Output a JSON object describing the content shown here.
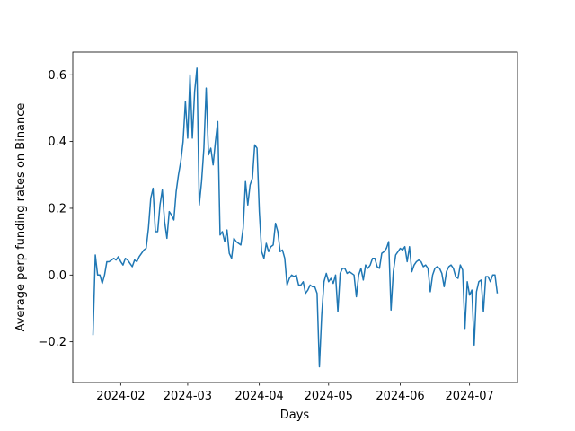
{
  "chart_data": {
    "type": "line",
    "xlabel": "Days",
    "ylabel": "Average perp funding rates on Binance",
    "color": "#1f77b4",
    "values": [
      -0.18,
      0.06,
      0.0,
      0.0,
      -0.025,
      0.0,
      0.04,
      0.04,
      0.045,
      0.05,
      0.045,
      0.055,
      0.04,
      0.03,
      0.05,
      0.045,
      0.035,
      0.025,
      0.045,
      0.04,
      0.055,
      0.065,
      0.075,
      0.08,
      0.14,
      0.23,
      0.26,
      0.13,
      0.13,
      0.21,
      0.255,
      0.16,
      0.11,
      0.19,
      0.18,
      0.165,
      0.25,
      0.3,
      0.34,
      0.4,
      0.52,
      0.41,
      0.6,
      0.41,
      0.55,
      0.62,
      0.21,
      0.28,
      0.38,
      0.56,
      0.36,
      0.38,
      0.33,
      0.4,
      0.46,
      0.12,
      0.13,
      0.1,
      0.135,
      0.065,
      0.05,
      0.11,
      0.1,
      0.095,
      0.09,
      0.14,
      0.28,
      0.21,
      0.27,
      0.29,
      0.39,
      0.38,
      0.19,
      0.07,
      0.05,
      0.095,
      0.07,
      0.085,
      0.09,
      0.155,
      0.13,
      0.07,
      0.075,
      0.05,
      -0.03,
      -0.01,
      0.0,
      -0.005,
      0.0,
      -0.03,
      -0.03,
      -0.02,
      -0.055,
      -0.045,
      -0.03,
      -0.035,
      -0.035,
      -0.055,
      -0.275,
      -0.12,
      -0.02,
      0.005,
      -0.02,
      -0.01,
      -0.025,
      0.0,
      -0.11,
      0.005,
      0.02,
      0.02,
      0.005,
      0.01,
      0.005,
      0.0,
      -0.065,
      0.0,
      0.02,
      -0.015,
      0.03,
      0.02,
      0.03,
      0.05,
      0.05,
      0.025,
      0.02,
      0.065,
      0.07,
      0.08,
      0.1,
      -0.105,
      0.01,
      0.06,
      0.07,
      0.08,
      0.075,
      0.085,
      0.04,
      0.085,
      0.01,
      0.03,
      0.04,
      0.045,
      0.04,
      0.025,
      0.03,
      0.02,
      -0.05,
      0.0,
      0.02,
      0.025,
      0.02,
      0.005,
      -0.035,
      0.01,
      0.025,
      0.03,
      0.02,
      -0.005,
      -0.01,
      0.03,
      0.015,
      -0.16,
      -0.02,
      -0.06,
      -0.045,
      -0.21,
      -0.05,
      -0.02,
      -0.015,
      -0.11,
      -0.005,
      -0.005,
      -0.02,
      0.0,
      0.0,
      -0.055
    ],
    "xlim": [
      -8.75,
      183.75
    ],
    "xticks": [
      {
        "value": 12,
        "label": "2024-02"
      },
      {
        "value": 41,
        "label": "2024-03"
      },
      {
        "value": 72,
        "label": "2024-04"
      },
      {
        "value": 102,
        "label": "2024-05"
      },
      {
        "value": 133,
        "label": "2024-06"
      },
      {
        "value": 163,
        "label": "2024-07"
      }
    ],
    "ylim": [
      -0.322,
      0.668
    ],
    "yticks": [
      {
        "value": -0.2,
        "label": "−0.2"
      },
      {
        "value": 0,
        "label": "0.0"
      },
      0.2,
      0.4,
      0.6
    ],
    "grid": false
  }
}
